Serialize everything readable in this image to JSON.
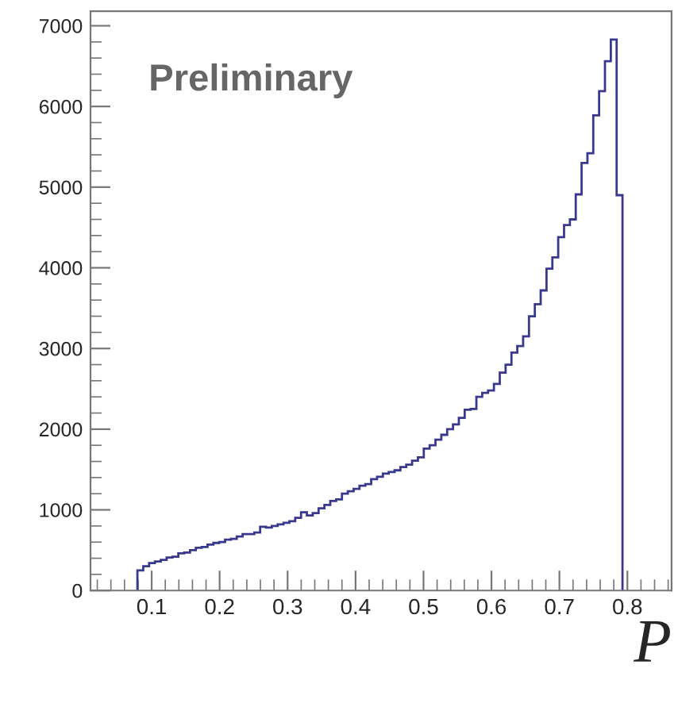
{
  "chart_data": {
    "type": "histogram",
    "xlabel": "P",
    "annotations": [
      "Preliminary"
    ],
    "color": "#38388c",
    "bins": [
      0.079,
      0.0876,
      0.0962,
      0.1048,
      0.1134,
      0.122,
      0.1306,
      0.1392,
      0.1478,
      0.1564,
      0.165,
      0.1736,
      0.1822,
      0.1908,
      0.1994,
      0.208,
      0.2166,
      0.2252,
      0.2338,
      0.2424,
      0.251,
      0.2596,
      0.2682,
      0.2768,
      0.2854,
      0.294,
      0.3026,
      0.3112,
      0.3198,
      0.3284,
      0.337,
      0.3456,
      0.3542,
      0.3628,
      0.3714,
      0.38,
      0.3886,
      0.3972,
      0.4058,
      0.4144,
      0.423,
      0.4316,
      0.4402,
      0.4488,
      0.4574,
      0.466,
      0.4746,
      0.4832,
      0.4918,
      0.5004,
      0.509,
      0.5176,
      0.5262,
      0.5348,
      0.5434,
      0.552,
      0.5606,
      0.5692,
      0.5778,
      0.5864,
      0.595,
      0.6036,
      0.6122,
      0.6208,
      0.6294,
      0.638,
      0.6466,
      0.6552,
      0.6638,
      0.6724,
      0.681,
      0.6896,
      0.6982,
      0.7068,
      0.7154,
      0.724,
      0.7326,
      0.7412,
      0.7498,
      0.7584,
      0.767,
      0.7756,
      0.7842,
      0.7928
    ],
    "values": [
      250,
      300,
      340,
      360,
      380,
      410,
      420,
      460,
      470,
      500,
      530,
      540,
      570,
      590,
      600,
      630,
      640,
      670,
      700,
      700,
      720,
      790,
      780,
      800,
      820,
      840,
      860,
      900,
      970,
      930,
      960,
      1020,
      1060,
      1110,
      1130,
      1200,
      1230,
      1260,
      1300,
      1320,
      1380,
      1410,
      1450,
      1470,
      1490,
      1530,
      1560,
      1610,
      1650,
      1760,
      1800,
      1870,
      1930,
      2000,
      2060,
      2140,
      2240,
      2250,
      2400,
      2450,
      2480,
      2560,
      2700,
      2800,
      2950,
      3030,
      3150,
      3400,
      3550,
      3720,
      3990,
      4130,
      4380,
      4530,
      4600,
      4910,
      5300,
      5420,
      5890,
      6190,
      6560,
      6830,
      4900
    ],
    "xlim": [
      0.01,
      0.865
    ],
    "ylim": [
      0,
      7180
    ],
    "xticks": [
      0.1,
      0.2,
      0.3,
      0.4,
      0.5,
      0.6,
      0.7,
      0.8
    ],
    "yticks": [
      0,
      1000,
      2000,
      3000,
      4000,
      5000,
      6000,
      7000
    ],
    "grid": false,
    "legend": false
  }
}
